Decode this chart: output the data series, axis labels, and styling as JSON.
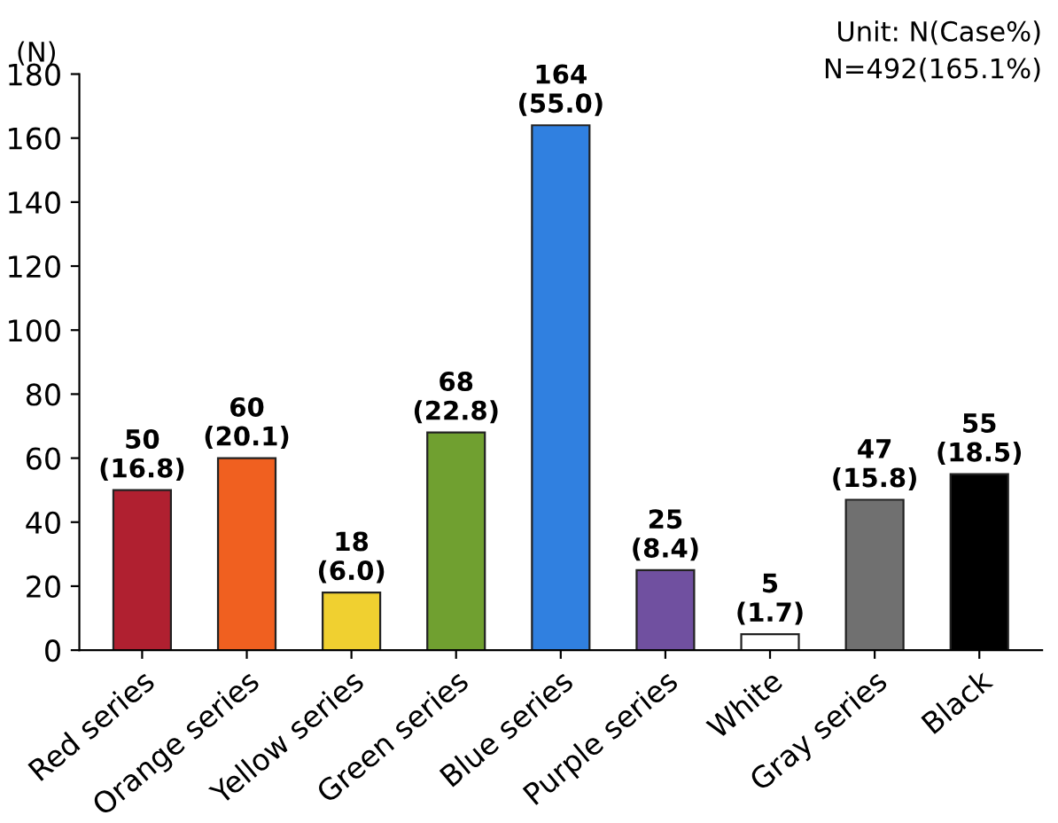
{
  "chart_data": {
    "type": "bar",
    "ylabel": "(N)",
    "annotations": [
      "Unit: N(Case%)",
      "N=492(165.1%)"
    ],
    "categories": [
      "Red series",
      "Orange series",
      "Yellow series",
      "Green series",
      "Blue series",
      "Purple series",
      "White",
      "Gray series",
      "Black"
    ],
    "values": [
      50,
      60,
      18,
      68,
      164,
      25,
      5,
      47,
      55
    ],
    "colors": [
      "#b02030",
      "#f06020",
      "#f0d030",
      "#70a030",
      "#3080e0",
      "#7050a0",
      "#ffffff",
      "#707070",
      "#000000"
    ],
    "value_labels": [
      "50\n(16.8)",
      "60\n(20.1)",
      "18\n(6.0)",
      "68\n(22.8)",
      "164\n(55.0)",
      "25\n(8.4)",
      "5\n(1.7)",
      "47\n(15.8)",
      "55\n(18.5)"
    ],
    "ylim": [
      0,
      180
    ],
    "yticks": [
      0,
      20,
      40,
      60,
      80,
      100,
      120,
      140,
      160,
      180
    ],
    "grid": false,
    "legend": false
  }
}
